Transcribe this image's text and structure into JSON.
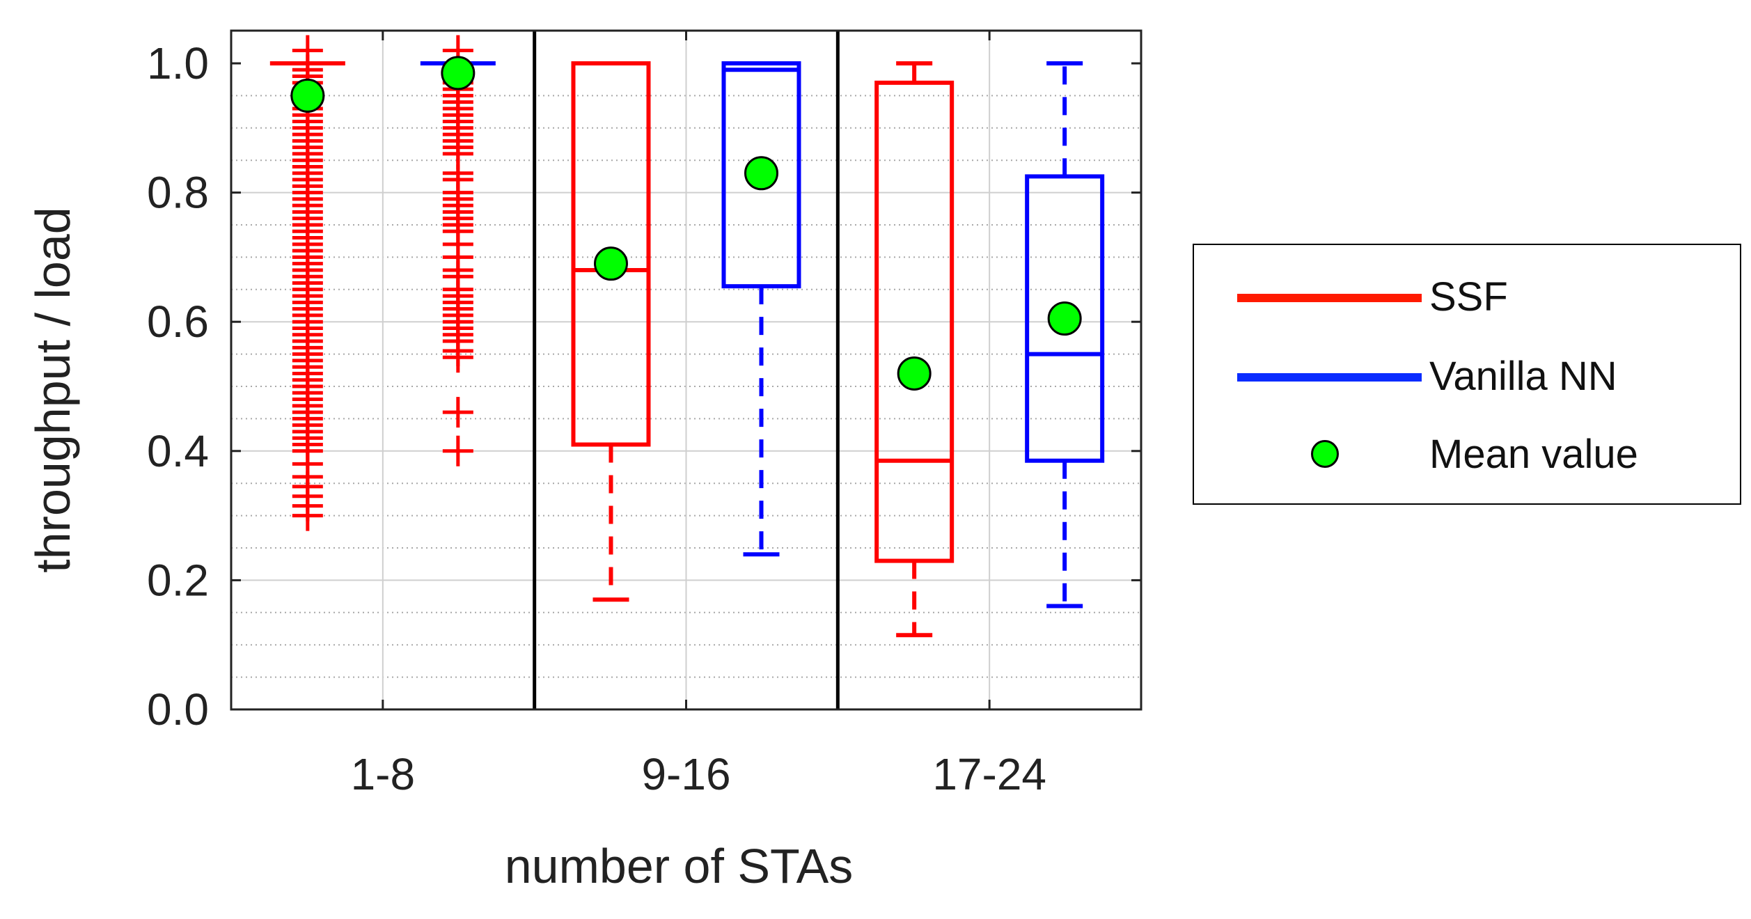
{
  "chart_data": {
    "type": "box",
    "xlabel": "number of STAs",
    "ylabel": "throughput / load",
    "ylim": [
      0,
      1
    ],
    "yticks": [
      "0.0",
      "0.2",
      "0.4",
      "0.6",
      "0.8",
      "1.0"
    ],
    "categories": [
      "1-8",
      "9-16",
      "17-24"
    ],
    "grid": true,
    "legend_position": "right",
    "series": [
      {
        "name": "SSF",
        "color": "#ff0000",
        "boxes": [
          {
            "category": "1-8",
            "q1": 1.0,
            "median": 1.0,
            "q3": 1.0,
            "whisker_low": 1.0,
            "whisker_high": 1.0,
            "mean": 0.95,
            "outliers": [
              1.02,
              0.99,
              0.98,
              0.97,
              0.96,
              0.95,
              0.94,
              0.93,
              0.92,
              0.91,
              0.9,
              0.89,
              0.88,
              0.87,
              0.86,
              0.85,
              0.84,
              0.83,
              0.82,
              0.81,
              0.8,
              0.79,
              0.78,
              0.77,
              0.76,
              0.75,
              0.74,
              0.73,
              0.72,
              0.71,
              0.7,
              0.69,
              0.68,
              0.67,
              0.66,
              0.65,
              0.64,
              0.63,
              0.62,
              0.61,
              0.6,
              0.59,
              0.58,
              0.57,
              0.56,
              0.55,
              0.54,
              0.53,
              0.52,
              0.51,
              0.5,
              0.49,
              0.48,
              0.47,
              0.46,
              0.45,
              0.44,
              0.43,
              0.42,
              0.41,
              0.4,
              0.38,
              0.36,
              0.345,
              0.33,
              0.315,
              0.3
            ]
          },
          {
            "category": "9-16",
            "q1": 0.41,
            "median": 0.68,
            "q3": 1.0,
            "whisker_low": 0.17,
            "whisker_high": 1.0,
            "mean": 0.69,
            "outliers": []
          },
          {
            "category": "17-24",
            "q1": 0.23,
            "median": 0.385,
            "q3": 0.97,
            "whisker_low": 0.115,
            "whisker_high": 1.0,
            "mean": 0.52,
            "outliers": []
          }
        ]
      },
      {
        "name": "Vanilla NN",
        "color": "#0000ff",
        "boxes": [
          {
            "category": "1-8",
            "q1": 1.0,
            "median": 1.0,
            "q3": 1.0,
            "whisker_low": 1.0,
            "whisker_high": 1.0,
            "mean": 0.985,
            "outliers": [
              1.02,
              0.98,
              0.97,
              0.96,
              0.95,
              0.94,
              0.93,
              0.92,
              0.91,
              0.9,
              0.89,
              0.88,
              0.87,
              0.86,
              0.83,
              0.82,
              0.8,
              0.79,
              0.78,
              0.77,
              0.76,
              0.75,
              0.74,
              0.72,
              0.7,
              0.68,
              0.67,
              0.65,
              0.64,
              0.63,
              0.62,
              0.61,
              0.6,
              0.59,
              0.58,
              0.57,
              0.555,
              0.545,
              0.46,
              0.4
            ]
          },
          {
            "category": "9-16",
            "q1": 0.655,
            "median": 0.99,
            "q3": 1.0,
            "whisker_low": 0.24,
            "whisker_high": 1.0,
            "mean": 0.83,
            "outliers": []
          },
          {
            "category": "17-24",
            "q1": 0.385,
            "median": 0.55,
            "q3": 0.825,
            "whisker_low": 0.16,
            "whisker_high": 1.0,
            "mean": 0.605,
            "outliers": []
          }
        ]
      }
    ],
    "mean_marker": {
      "name": "Mean value",
      "color": "#00ff00"
    }
  }
}
